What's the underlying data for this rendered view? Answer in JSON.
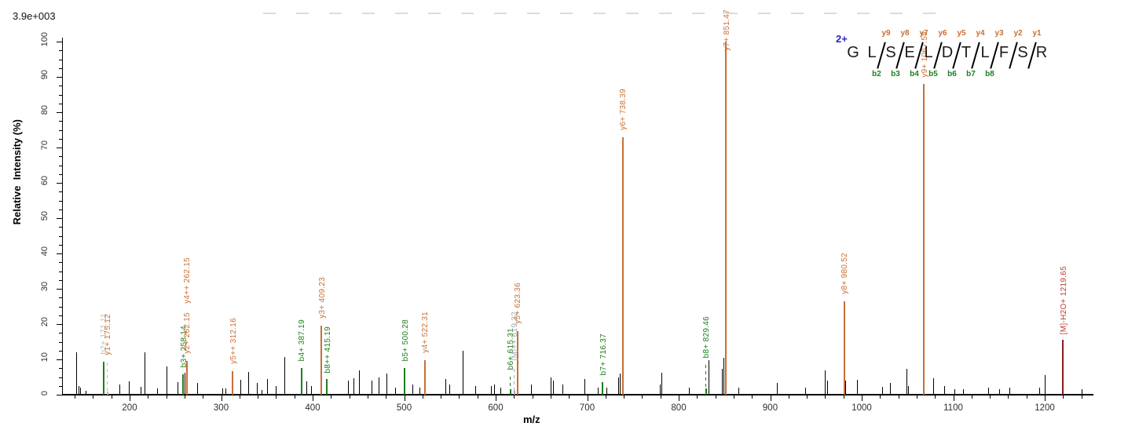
{
  "header": {
    "max_intensity": "3.9e+003"
  },
  "peptide": {
    "charge_label": "2+",
    "sequence": "GLSELDTLFSR",
    "residues": [
      "G",
      "L",
      "S",
      "E",
      "L",
      "D",
      "T",
      "L",
      "F",
      "S",
      "R"
    ],
    "y_ions": [
      "y9",
      "y8",
      "y7",
      "y6",
      "y5",
      "y4",
      "y3",
      "y2",
      "y1"
    ],
    "b_ions": [
      "b2",
      "b3",
      "b4",
      "b5",
      "b6",
      "b7",
      "b8"
    ]
  },
  "colors": {
    "y_ion": "#C96F35",
    "b_ion": "#1E7D1E",
    "b_faint": "#9CB49C",
    "precursor_gray": "#A5A8AE",
    "neutral_loss_label": "#C03A30",
    "neutral_loss_line": "#8B1A1A",
    "peak_black": "#000000",
    "charge_blue": "#2525C4",
    "y1_dash": "#CDB29B",
    "axis": "#000000",
    "tick_label": "#2E2E2E",
    "top_dashes": "#D4D8DE"
  },
  "chart_data": {
    "type": "bar",
    "subtype": "ms2_fragment_ion_spectrum",
    "title": "",
    "xlabel": "m/z",
    "ylabel": "Relative  Intensity (%)",
    "xlim": [
      127,
      1253
    ],
    "ylim": [
      0,
      100
    ],
    "grid": false,
    "x_major_ticks": [
      200,
      300,
      400,
      500,
      600,
      700,
      800,
      900,
      1000,
      1100,
      1200
    ],
    "x_minor_step": 20,
    "y_major_step": 10,
    "y_minor_step": 2.5,
    "max_intensity_label": "3.9e+003",
    "annotated_peaks": [
      {
        "ion": "b2+",
        "mz_text": "171.11",
        "mz": 171.11,
        "intensity_pct": 9.3,
        "series": "b",
        "line": "solid",
        "label_style": "faint"
      },
      {
        "ion": "y1+",
        "mz_text": "175.12",
        "mz": 175.12,
        "intensity_pct": 1.0,
        "series": "y",
        "line": "dashed",
        "label_bottom_pct": 9.2
      },
      {
        "ion": "b3+",
        "mz_text": "258.14",
        "mz": 258.14,
        "intensity_pct": 5.8,
        "series": "b",
        "line": "solid"
      },
      {
        "ion": "y2+",
        "mz_text": "262.15",
        "mz": 262.15,
        "intensity_pct": 9.5,
        "series": "y",
        "line": "solid",
        "stacked_label": "y4++ 262.15"
      },
      {
        "ion": "y5++",
        "mz_text": "312.16",
        "mz": 312.16,
        "intensity_pct": 6.7,
        "series": "y",
        "line": "solid"
      },
      {
        "ion": "b4+",
        "mz_text": "387.19",
        "mz": 387.19,
        "intensity_pct": 7.6,
        "series": "b",
        "line": "solid"
      },
      {
        "ion": "y3+",
        "mz_text": "409.23",
        "mz": 409.23,
        "intensity_pct": 19.6,
        "series": "y",
        "line": "solid"
      },
      {
        "ion": "b8++",
        "mz_text": "415.19",
        "mz": 415.19,
        "intensity_pct": 4.4,
        "series": "b",
        "line": "solid"
      },
      {
        "ion": "b5+",
        "mz_text": "500.28",
        "mz": 500.28,
        "intensity_pct": 7.6,
        "series": "b",
        "line": "solid"
      },
      {
        "ion": "y4+",
        "mz_text": "522.31",
        "mz": 522.31,
        "intensity_pct": 9.8,
        "series": "y",
        "line": "solid"
      },
      {
        "ion": "b6+",
        "mz_text": "615.31",
        "mz": 615.31,
        "intensity_pct": 1.5,
        "series": "b",
        "line": "dashed",
        "label_bottom_pct": 5.2
      },
      {
        "ion": "[M]++",
        "mz_text": "619.32",
        "mz": 619.32,
        "intensity_pct": 1.2,
        "series": "precursor",
        "line": "dashed",
        "label_bottom_pct": 7.4,
        "occluded": true
      },
      {
        "ion": "y5+",
        "mz_text": "623.36",
        "mz": 623.36,
        "intensity_pct": 18,
        "series": "y",
        "line": "solid"
      },
      {
        "ion": "b7+",
        "mz_text": "716.37",
        "mz": 716.37,
        "intensity_pct": 3.6,
        "series": "b",
        "line": "solid"
      },
      {
        "ion": "y6+",
        "mz_text": "738.39",
        "mz": 738.39,
        "intensity_pct": 73,
        "series": "y",
        "line": "solid"
      },
      {
        "ion": "b8+",
        "mz_text": "829.46",
        "mz": 829.46,
        "intensity_pct": 1.8,
        "series": "b",
        "line": "dashed",
        "label_bottom_pct": 8.4
      },
      {
        "ion": "y7+",
        "mz_text": "851.47",
        "mz": 851.47,
        "intensity_pct": 100,
        "series": "y",
        "line": "solid"
      },
      {
        "ion": "y8+",
        "mz_text": "980.52",
        "mz": 980.52,
        "intensity_pct": 26.5,
        "series": "y",
        "line": "solid"
      },
      {
        "ion": "y9+",
        "mz_text": "1067.55",
        "mz": 1067.55,
        "intensity_pct": 88,
        "series": "y",
        "line": "solid",
        "occluded": true
      },
      {
        "ion": "[M]-H2O+",
        "mz_text": "1219.65",
        "mz": 1219.65,
        "intensity_pct": 15.5,
        "series": "neutral_loss",
        "line": "solid"
      }
    ],
    "unannotated_peaks": [
      [
        142,
        11.9
      ],
      [
        144,
        2.4
      ],
      [
        146,
        1.9
      ],
      [
        152,
        1.2
      ],
      [
        189,
        3.0
      ],
      [
        199,
        3.8
      ],
      [
        212,
        2.3
      ],
      [
        216,
        12.1
      ],
      [
        230,
        1.7
      ],
      [
        240,
        7.9
      ],
      [
        252,
        3.5
      ],
      [
        260,
        6.3
      ],
      [
        274,
        3.3
      ],
      [
        301,
        1.8
      ],
      [
        305,
        1.8
      ],
      [
        321,
        4.3
      ],
      [
        330,
        6.5
      ],
      [
        339,
        3.3
      ],
      [
        344,
        1.3
      ],
      [
        350,
        4.4
      ],
      [
        360,
        2.4
      ],
      [
        369,
        10.6
      ],
      [
        393,
        3.7
      ],
      [
        398,
        2.4
      ],
      [
        439,
        4.0
      ],
      [
        445,
        4.7
      ],
      [
        451,
        6.9
      ],
      [
        464,
        4.0
      ],
      [
        472,
        5.0
      ],
      [
        481,
        5.9
      ],
      [
        490,
        2.0
      ],
      [
        509,
        3.0
      ],
      [
        517,
        2.0
      ],
      [
        545,
        4.5
      ],
      [
        549,
        3.0
      ],
      [
        564,
        12.5
      ],
      [
        578,
        2.5
      ],
      [
        595,
        2.5
      ],
      [
        598,
        3.0
      ],
      [
        605,
        2.0
      ],
      [
        624,
        4.5
      ],
      [
        639,
        2.8
      ],
      [
        660,
        5.0
      ],
      [
        663,
        4.0
      ],
      [
        673,
        3.0
      ],
      [
        697,
        4.4
      ],
      [
        712,
        2.0
      ],
      [
        721,
        2.0
      ],
      [
        734,
        5.0
      ],
      [
        736,
        6.0
      ],
      [
        738,
        4.5
      ],
      [
        779,
        3.0
      ],
      [
        781,
        6.3
      ],
      [
        811,
        2.0
      ],
      [
        833,
        9.8
      ],
      [
        847,
        7.3
      ],
      [
        849,
        10.4
      ],
      [
        865,
        2.0
      ],
      [
        907,
        3.4
      ],
      [
        938,
        2.0
      ],
      [
        960,
        6.8
      ],
      [
        962,
        4.0
      ],
      [
        982,
        4.0
      ],
      [
        995,
        4.2
      ],
      [
        1022,
        2.2
      ],
      [
        1031,
        3.3
      ],
      [
        1049,
        7.3
      ],
      [
        1051,
        2.5
      ],
      [
        1078,
        4.7
      ],
      [
        1090,
        2.5
      ],
      [
        1101,
        1.5
      ],
      [
        1111,
        1.5
      ],
      [
        1138,
        2.0
      ],
      [
        1150,
        1.5
      ],
      [
        1161,
        2.0
      ],
      [
        1194,
        2.0
      ],
      [
        1200,
        5.5
      ],
      [
        1240,
        1.5
      ]
    ]
  }
}
